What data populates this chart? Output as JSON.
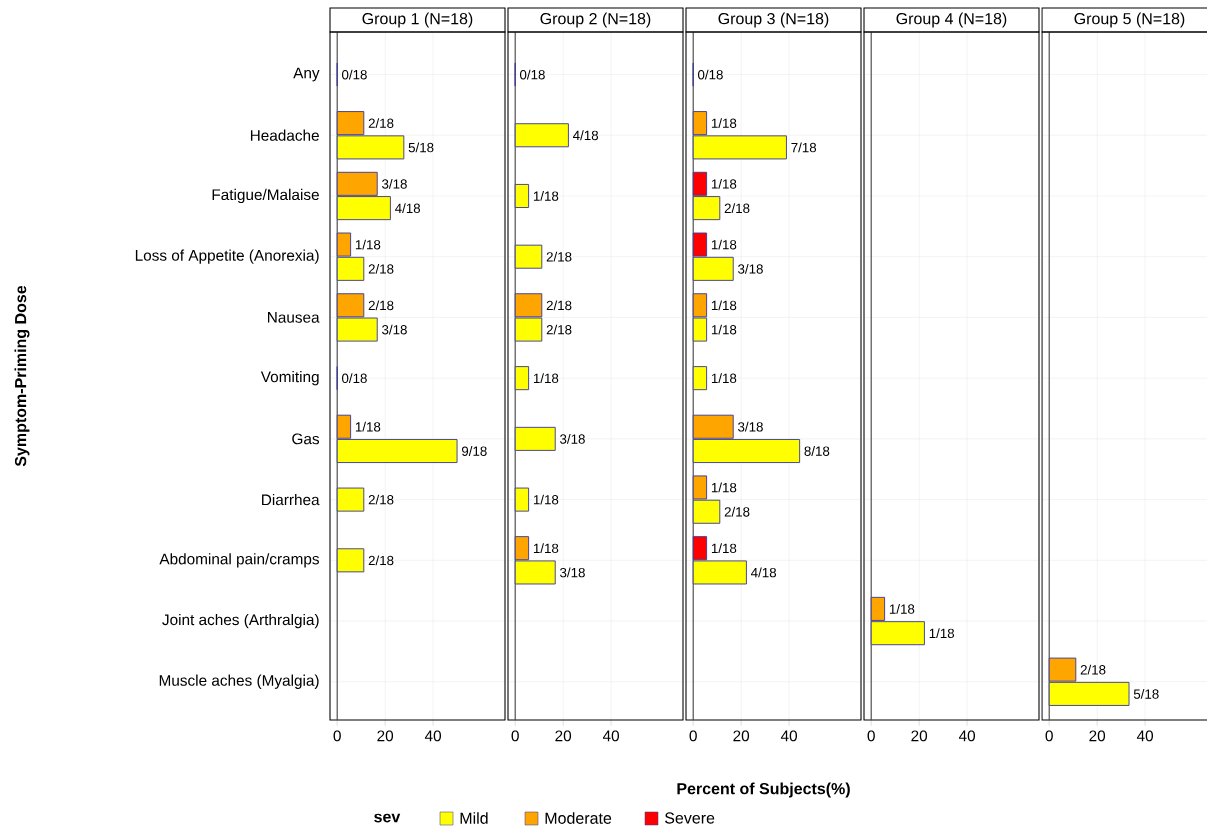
{
  "chart_data": [
    {
      "type": "bar",
      "orientation": "horizontal",
      "title": "Group 1 (N=18)",
      "ylabel": "Symptom-Priming Dose",
      "categories": [
        "Any",
        "Headache",
        "Fatigue/Malaise",
        "Loss of Appetite (Anorexia)",
        "Nausea",
        "Vomiting",
        "Gas",
        "Diarrhea",
        "Abdominal pain/cramps",
        "Joint aches (Arthralgia)",
        "Muscle aches (Myalgia)"
      ],
      "series": [
        {
          "color": "#ffff00",
          "values": [
            0,
            27.8,
            22.2,
            11.1,
            16.7,
            0,
            50,
            11.1,
            11.1,
            null,
            null
          ],
          "value_labels": [
            "0/18",
            "5/18",
            "4/18",
            "2/18",
            "3/18",
            "0/18",
            "9/18",
            "2/18",
            "2/18",
            null,
            null
          ]
        },
        {
          "color": "#ffa500",
          "values": [
            null,
            11.1,
            16.7,
            5.6,
            11.1,
            null,
            5.6,
            null,
            null,
            null,
            null
          ],
          "value_labels": [
            null,
            "2/18",
            "3/18",
            "1/18",
            "2/18",
            null,
            "1/18",
            null,
            null,
            null,
            null
          ]
        }
      ],
      "xlim": [
        -3,
        70
      ],
      "xticks": [
        0,
        20,
        40
      ],
      "grid": true,
      "ref_lines": [
        {
          "axis": "x",
          "value": 0,
          "color": "#404040"
        }
      ]
    },
    {
      "type": "bar",
      "orientation": "horizontal",
      "title": "Group 2 (N=18)",
      "categories": [
        null,
        null,
        null,
        null,
        null,
        null,
        null,
        null,
        null,
        null,
        null
      ],
      "series": [
        {
          "color": "#ffff00",
          "values": [
            0,
            22.2,
            5.6,
            11.1,
            11.1,
            5.6,
            16.7,
            5.6,
            16.7,
            null,
            null
          ],
          "value_labels": [
            "0/18",
            "4/18",
            "1/18",
            "2/18",
            "2/18",
            "1/18",
            "3/18",
            "1/18",
            "3/18",
            null,
            null
          ]
        },
        {
          "color": "#ffa500",
          "values": [
            null,
            null,
            null,
            null,
            11.1,
            null,
            null,
            null,
            5.6,
            null,
            null
          ],
          "value_labels": [
            null,
            null,
            null,
            null,
            "2/18",
            null,
            null,
            null,
            "1/18",
            null,
            null
          ]
        }
      ],
      "xlim": [
        -3,
        70
      ],
      "xticks": [
        0,
        20,
        40
      ],
      "grid": true,
      "tick_labels": "x",
      "ref_lines": [
        {
          "axis": "x",
          "value": 0,
          "color": "#404040"
        }
      ]
    },
    {
      "type": "bar",
      "orientation": "horizontal",
      "title": "Group 3 (N=18)",
      "xlabel": "Percent of Subjects(%)",
      "legend": "bottom",
      "legend_title": "sev",
      "categories": [
        null,
        null,
        null,
        null,
        null,
        null,
        null,
        null,
        null,
        null,
        null
      ],
      "series": [
        {
          "name": "Mild",
          "color": "#ffff00",
          "values": [
            0,
            38.9,
            11.1,
            16.7,
            5.6,
            5.6,
            44.4,
            11.1,
            22.2,
            null,
            null
          ],
          "value_labels": [
            "0/18",
            "7/18",
            "2/18",
            "3/18",
            "1/18",
            "1/18",
            "8/18",
            "2/18",
            "4/18",
            null,
            null
          ]
        },
        {
          "name": "Moderate",
          "color": "#ffa500",
          "values": [
            null,
            5.6,
            null,
            null,
            5.6,
            null,
            16.7,
            5.6,
            null,
            null,
            null
          ],
          "value_labels": [
            null,
            "1/18",
            null,
            null,
            "1/18",
            null,
            "3/18",
            "1/18",
            null,
            null,
            null
          ]
        },
        {
          "name": "Severe",
          "color": "#ff0000",
          "values": [
            null,
            null,
            5.6,
            5.6,
            null,
            null,
            null,
            null,
            5.6,
            null,
            null
          ],
          "value_labels": [
            null,
            null,
            "1/18",
            "1/18",
            null,
            null,
            null,
            null,
            "1/18",
            null,
            null
          ]
        }
      ],
      "xlim": [
        -3,
        70
      ],
      "xticks": [
        0,
        20,
        40
      ],
      "grid": true,
      "tick_labels": "x",
      "ref_lines": [
        {
          "axis": "x",
          "value": 0,
          "color": "#404040"
        }
      ]
    },
    {
      "type": "bar",
      "orientation": "horizontal",
      "title": "Group 4 (N=18)",
      "categories": [
        null,
        null,
        null,
        null,
        null,
        null,
        null,
        null,
        null,
        null,
        null
      ],
      "series": [
        {
          "color": "#ffff00",
          "values": [
            null,
            null,
            null,
            null,
            null,
            null,
            null,
            null,
            null,
            22.2,
            null
          ],
          "value_labels": [
            null,
            null,
            null,
            null,
            null,
            null,
            null,
            null,
            null,
            "1/18",
            null
          ]
        },
        {
          "color": "#ffa500",
          "values": [
            null,
            null,
            null,
            null,
            null,
            null,
            null,
            null,
            null,
            5.6,
            null
          ],
          "value_labels": [
            null,
            null,
            null,
            null,
            null,
            null,
            null,
            null,
            null,
            "1/18",
            null
          ]
        }
      ],
      "xlim": [
        -3,
        70
      ],
      "xticks": [
        0,
        20,
        40
      ],
      "grid": true,
      "tick_labels": "x",
      "ref_lines": [
        {
          "axis": "x",
          "value": 0,
          "color": "#404040"
        }
      ]
    },
    {
      "type": "bar",
      "orientation": "horizontal",
      "title": "Group 5 (N=18)",
      "categories": [
        null,
        null,
        null,
        null,
        null,
        null,
        null,
        null,
        null,
        null,
        null
      ],
      "series": [
        {
          "color": "#ffff00",
          "values": [
            null,
            null,
            null,
            null,
            null,
            null,
            null,
            null,
            null,
            null,
            33.3
          ],
          "value_labels": [
            null,
            null,
            null,
            null,
            null,
            null,
            null,
            null,
            null,
            null,
            "5/18"
          ]
        },
        {
          "color": "#ffa500",
          "values": [
            null,
            null,
            null,
            null,
            null,
            null,
            null,
            null,
            null,
            null,
            11.1
          ],
          "value_labels": [
            null,
            null,
            null,
            null,
            null,
            null,
            null,
            null,
            null,
            null,
            "2/18"
          ]
        }
      ],
      "xlim": [
        -3,
        70
      ],
      "xticks": [
        0,
        20,
        40
      ],
      "grid": true,
      "tick_labels": "x",
      "ref_lines": [
        {
          "axis": "x",
          "value": 0,
          "color": "#404040"
        }
      ]
    }
  ]
}
